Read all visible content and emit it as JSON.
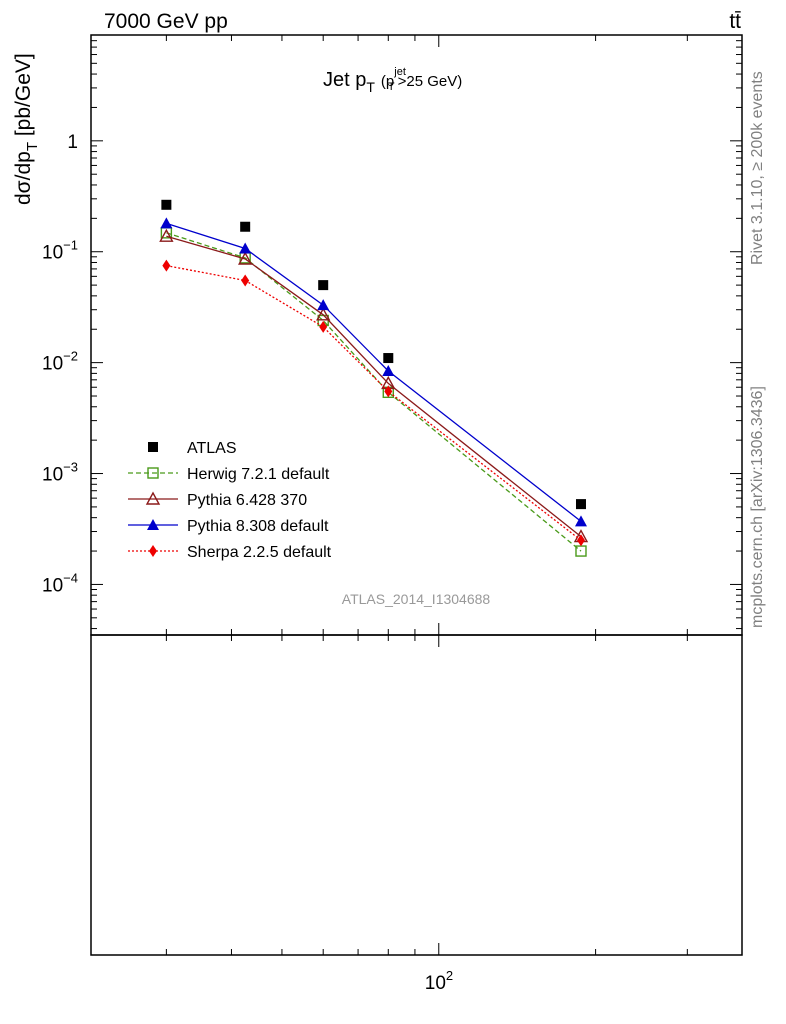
{
  "header": {
    "left": "7000 GeV pp",
    "right": "tt̄"
  },
  "side_labels": {
    "rivet": "Rivet 3.1.10, ≥ 200k events",
    "mcplots": "mcplots.cern.ch [arXiv:1306.3436]"
  },
  "chart_data": {
    "type": "line",
    "title": {
      "main": "Jet p",
      "main_sub": "T",
      "cut_open": "(p",
      "cut_sup": "jet",
      "cut_sub": "T",
      "cut_close": ">25 GeV)"
    },
    "ylabel": {
      "main": "dσ/dp",
      "sub": "T",
      "unit": " [pb/GeV]"
    },
    "xscale": "log",
    "yscale": "log",
    "xlim": [
      21.5,
      382
    ],
    "ylim": [
      3.5e-05,
      9
    ],
    "x_ticks": [
      {
        "value": 100,
        "base": "10",
        "exp": "2"
      }
    ],
    "y_ticks": [
      {
        "value": 1,
        "base": "1",
        "exp": ""
      },
      {
        "value": 0.1,
        "base": "10",
        "exp": "−1"
      },
      {
        "value": 0.01,
        "base": "10",
        "exp": "−2"
      },
      {
        "value": 0.001,
        "base": "10",
        "exp": "−3"
      },
      {
        "value": 0.0001,
        "base": "10",
        "exp": "−4"
      }
    ],
    "watermark": "ATLAS_2014_I1304688",
    "legend_position": "bottom-left",
    "series": [
      {
        "name": "ATLAS",
        "color": "#000000",
        "marker": "square-filled",
        "line": "none",
        "x": [
          30,
          42.5,
          60,
          80,
          187.5
        ],
        "y": [
          0.265,
          0.168,
          0.05,
          0.011,
          0.00053
        ]
      },
      {
        "name": "Herwig 7.2.1 default",
        "color": "#4a9a1a",
        "marker": "square-open",
        "line": "dashed",
        "x": [
          30,
          42.5,
          60,
          80,
          187.5
        ],
        "y": [
          0.148,
          0.088,
          0.024,
          0.0054,
          0.0002
        ]
      },
      {
        "name": "Pythia 6.428 370",
        "color": "#8b1a1a",
        "marker": "triangle-open",
        "line": "solid",
        "x": [
          30,
          42.5,
          60,
          80,
          187.5
        ],
        "y": [
          0.138,
          0.086,
          0.027,
          0.0065,
          0.00027
        ]
      },
      {
        "name": "Pythia 8.308 default",
        "color": "#0000cc",
        "marker": "triangle-filled",
        "line": "solid",
        "x": [
          30,
          42.5,
          60,
          80,
          187.5
        ],
        "y": [
          0.18,
          0.107,
          0.033,
          0.0084,
          0.00037
        ]
      },
      {
        "name": "Sherpa 2.2.5 default",
        "color": "#ee0000",
        "marker": "diamond-filled",
        "line": "dotted",
        "x": [
          30,
          42.5,
          60,
          80,
          187.5
        ],
        "y": [
          0.075,
          0.055,
          0.021,
          0.0055,
          0.00025
        ]
      }
    ]
  }
}
